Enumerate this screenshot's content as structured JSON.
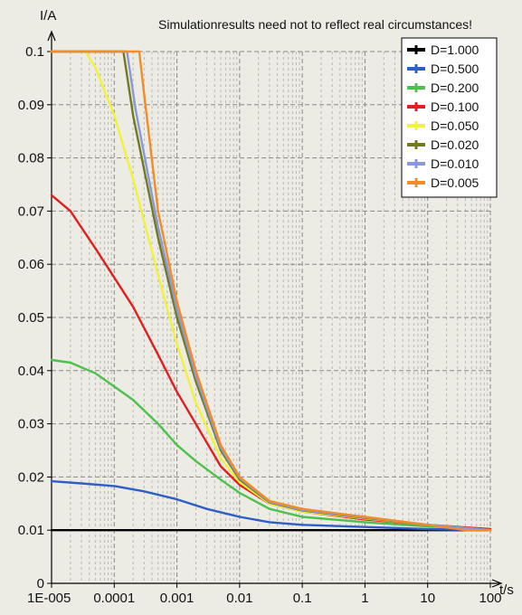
{
  "chart_data": {
    "type": "line",
    "note": "Simulationresults need not to reflect real circumstances!",
    "ylabel": "I/A",
    "xlabel": "t/s",
    "xscale": "log",
    "xlim": [
      1e-05,
      100
    ],
    "ylim": [
      0,
      0.1
    ],
    "x_ticks": [
      "1E-005",
      "0.0001",
      "0.001",
      "0.01",
      "0.1",
      "1",
      "10",
      "100"
    ],
    "y_ticks": [
      "0",
      "0.01",
      "0.02",
      "0.03",
      "0.04",
      "0.05",
      "0.06",
      "0.07",
      "0.08",
      "0.09",
      "0.1"
    ],
    "grid": true,
    "legend_position": "top-right",
    "series": [
      {
        "name": "D=1.000",
        "color": "#000000",
        "points": [
          [
            1e-05,
            0.01
          ],
          [
            100,
            0.01
          ]
        ]
      },
      {
        "name": "D=0.500",
        "color": "#2f5fc4",
        "points": [
          [
            1e-05,
            0.0192
          ],
          [
            3e-05,
            0.0188
          ],
          [
            0.0001,
            0.0183
          ],
          [
            0.0003,
            0.0173
          ],
          [
            0.001,
            0.0158
          ],
          [
            0.003,
            0.014
          ],
          [
            0.01,
            0.0125
          ],
          [
            0.03,
            0.0115
          ],
          [
            0.1,
            0.011
          ],
          [
            1,
            0.0106
          ],
          [
            10,
            0.0102
          ],
          [
            100,
            0.01
          ]
        ]
      },
      {
        "name": "D=0.200",
        "color": "#4cc24c",
        "points": [
          [
            1e-05,
            0.042
          ],
          [
            2e-05,
            0.0415
          ],
          [
            5e-05,
            0.0395
          ],
          [
            0.0001,
            0.037
          ],
          [
            0.0002,
            0.0345
          ],
          [
            0.0005,
            0.03
          ],
          [
            0.001,
            0.026
          ],
          [
            0.002,
            0.023
          ],
          [
            0.005,
            0.0195
          ],
          [
            0.01,
            0.017
          ],
          [
            0.03,
            0.014
          ],
          [
            0.1,
            0.0125
          ],
          [
            1,
            0.0115
          ],
          [
            10,
            0.0107
          ],
          [
            100,
            0.0102
          ]
        ]
      },
      {
        "name": "D=0.100",
        "color": "#e02020",
        "points": [
          [
            1e-05,
            0.073
          ],
          [
            2e-05,
            0.07
          ],
          [
            5e-05,
            0.063
          ],
          [
            0.0001,
            0.0575
          ],
          [
            0.0002,
            0.052
          ],
          [
            0.0005,
            0.043
          ],
          [
            0.001,
            0.036
          ],
          [
            0.002,
            0.03
          ],
          [
            0.005,
            0.022
          ],
          [
            0.01,
            0.0185
          ],
          [
            0.03,
            0.015
          ],
          [
            0.1,
            0.0135
          ],
          [
            1,
            0.012
          ],
          [
            10,
            0.011
          ],
          [
            100,
            0.0102
          ]
        ]
      },
      {
        "name": "D=0.050",
        "color": "#f2f23a",
        "points": [
          [
            1e-05,
            0.1
          ],
          [
            3.5e-05,
            0.1
          ],
          [
            5e-05,
            0.097
          ],
          [
            0.0001,
            0.088
          ],
          [
            0.0002,
            0.076
          ],
          [
            0.0005,
            0.058
          ],
          [
            0.001,
            0.045
          ],
          [
            0.002,
            0.034
          ],
          [
            0.005,
            0.0235
          ],
          [
            0.01,
            0.019
          ],
          [
            0.03,
            0.015
          ],
          [
            0.1,
            0.0135
          ],
          [
            1,
            0.0122
          ],
          [
            10,
            0.011
          ],
          [
            100,
            0.01
          ]
        ]
      },
      {
        "name": "D=0.020",
        "color": "#707a1e",
        "points": [
          [
            1e-05,
            0.1
          ],
          [
            0.00014,
            0.1
          ],
          [
            0.0002,
            0.088
          ],
          [
            0.0005,
            0.065
          ],
          [
            0.001,
            0.05
          ],
          [
            0.002,
            0.038
          ],
          [
            0.005,
            0.025
          ],
          [
            0.01,
            0.0195
          ],
          [
            0.03,
            0.0152
          ],
          [
            0.1,
            0.0137
          ],
          [
            1,
            0.0123
          ],
          [
            10,
            0.011
          ],
          [
            100,
            0.01
          ]
        ]
      },
      {
        "name": "D=0.010",
        "color": "#8a97d8",
        "points": [
          [
            1e-05,
            0.1
          ],
          [
            0.00016,
            0.1
          ],
          [
            0.00022,
            0.089
          ],
          [
            0.0005,
            0.067
          ],
          [
            0.001,
            0.0515
          ],
          [
            0.002,
            0.039
          ],
          [
            0.005,
            0.0255
          ],
          [
            0.01,
            0.0198
          ],
          [
            0.03,
            0.0153
          ],
          [
            0.1,
            0.0138
          ],
          [
            1,
            0.0124
          ],
          [
            10,
            0.011
          ],
          [
            100,
            0.01
          ]
        ]
      },
      {
        "name": "D=0.005",
        "color": "#f28c28",
        "points": [
          [
            1e-05,
            0.1
          ],
          [
            0.00025,
            0.1
          ],
          [
            0.0003,
            0.092
          ],
          [
            0.0005,
            0.07
          ],
          [
            0.001,
            0.053
          ],
          [
            0.002,
            0.04
          ],
          [
            0.005,
            0.026
          ],
          [
            0.01,
            0.02
          ],
          [
            0.03,
            0.0155
          ],
          [
            0.1,
            0.014
          ],
          [
            1,
            0.0125
          ],
          [
            10,
            0.011
          ],
          [
            40,
            0.01
          ],
          [
            100,
            0.01
          ]
        ]
      }
    ]
  }
}
